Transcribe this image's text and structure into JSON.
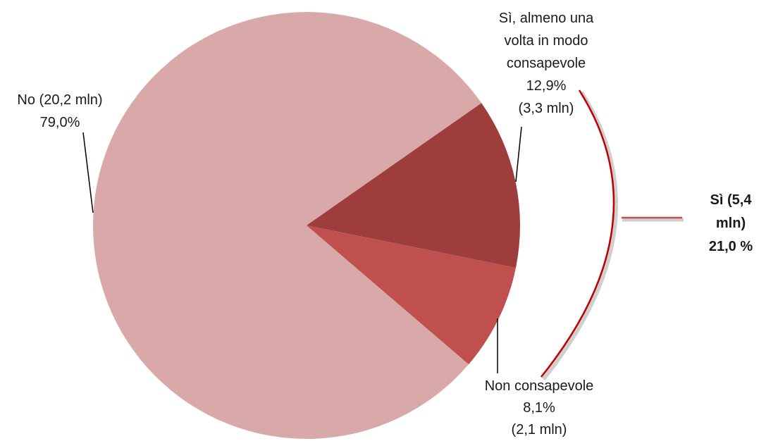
{
  "chart_data": {
    "type": "pie",
    "categories": [
      "No (20,2 mln)",
      "Sì, almeno una volta in modo consapevole",
      "Non consapevole"
    ],
    "values": [
      79.0,
      12.9,
      8.1
    ],
    "value_labels": [
      "79,0%",
      "12,9%",
      "8,1%"
    ],
    "amount_labels": [
      null,
      "(3,3 mln)",
      "(2,1 mln)"
    ],
    "colors": [
      "#d9a9aa",
      "#9e3e3c",
      "#c0504d"
    ],
    "group": {
      "label": "Sì (5,4 mln)",
      "value": 21.0,
      "value_label": "21,0 %"
    }
  }
}
